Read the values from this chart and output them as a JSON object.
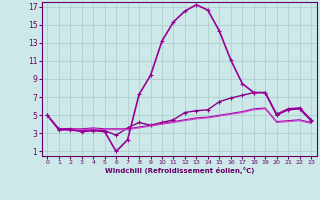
{
  "xlabel": "Windchill (Refroidissement éolien,°C)",
  "xlim": [
    -0.5,
    23.5
  ],
  "ylim": [
    0.5,
    17.5
  ],
  "xticks": [
    0,
    1,
    2,
    3,
    4,
    5,
    6,
    7,
    8,
    9,
    10,
    11,
    12,
    13,
    14,
    15,
    16,
    17,
    18,
    19,
    20,
    21,
    22,
    23
  ],
  "yticks": [
    1,
    3,
    5,
    7,
    9,
    11,
    13,
    15,
    17
  ],
  "bg_color": "#cce8e8",
  "grid_color": "#aacccc",
  "spine_color": "#660066",
  "tick_color": "#660066",
  "xlabel_color": "#660066",
  "lines": [
    {
      "x": [
        0,
        1,
        2,
        3,
        4,
        5,
        6,
        7,
        8,
        9,
        10,
        11,
        12,
        13,
        14,
        15,
        16,
        17,
        18,
        19,
        20,
        21,
        22,
        23
      ],
      "y": [
        5,
        3.5,
        3.5,
        3.3,
        3.4,
        3.3,
        2.8,
        3.6,
        4.2,
        3.9,
        4.2,
        4.5,
        5.3,
        5.5,
        5.6,
        6.5,
        6.9,
        7.2,
        7.5,
        7.5,
        5.0,
        5.6,
        5.7,
        4.4
      ],
      "color": "#880088",
      "lw": 1.0,
      "marker": "+"
    },
    {
      "x": [
        0,
        1,
        2,
        3,
        4,
        5,
        6,
        7,
        8,
        9,
        10,
        11,
        12,
        13,
        14,
        15,
        16,
        17,
        18,
        19,
        20,
        21,
        22,
        23
      ],
      "y": [
        5,
        3.5,
        3.5,
        3.5,
        3.6,
        3.5,
        3.5,
        3.5,
        3.7,
        3.9,
        4.1,
        4.3,
        4.5,
        4.7,
        4.8,
        5.0,
        5.2,
        5.4,
        5.7,
        5.8,
        4.3,
        4.4,
        4.5,
        4.2
      ],
      "color": "#aa00aa",
      "lw": 0.8,
      "marker": null
    },
    {
      "x": [
        0,
        1,
        2,
        3,
        4,
        5,
        6,
        7,
        8,
        9,
        10,
        11,
        12,
        13,
        14,
        15,
        16,
        17,
        18,
        19,
        20,
        21,
        22,
        23
      ],
      "y": [
        5,
        3.4,
        3.4,
        3.4,
        3.5,
        3.4,
        3.4,
        3.4,
        3.6,
        3.8,
        4.0,
        4.2,
        4.4,
        4.6,
        4.7,
        4.9,
        5.1,
        5.3,
        5.6,
        5.7,
        4.2,
        4.3,
        4.4,
        4.1
      ],
      "color": "#cc44cc",
      "lw": 0.8,
      "marker": null
    },
    {
      "x": [
        0,
        1,
        2,
        3,
        4,
        5,
        6,
        7,
        8,
        9,
        10,
        11,
        12,
        13,
        14,
        15,
        16,
        17,
        18,
        19,
        20,
        21,
        22,
        23
      ],
      "y": [
        5,
        3.4,
        3.4,
        3.2,
        3.3,
        3.2,
        1.0,
        2.3,
        7.3,
        9.4,
        13.2,
        15.3,
        16.5,
        17.2,
        16.6,
        14.3,
        11.1,
        8.5,
        7.5,
        7.5,
        5.1,
        5.7,
        5.8,
        4.5
      ],
      "color": "#990099",
      "lw": 1.2,
      "marker": "+"
    }
  ]
}
